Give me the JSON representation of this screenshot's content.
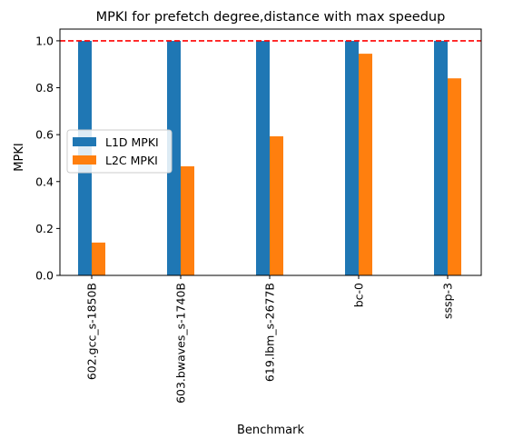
{
  "chart_data": {
    "type": "bar",
    "title": "MPKI for prefetch degree,distance with max speedup",
    "xlabel": "Benchmark",
    "ylabel": "MPKI",
    "ylim": [
      0,
      1.05
    ],
    "yticks": [
      0.0,
      0.2,
      0.4,
      0.6,
      0.8,
      1.0
    ],
    "ytick_labels": [
      "0.0",
      "0.2",
      "0.4",
      "0.6",
      "0.8",
      "1.0"
    ],
    "categories": [
      "602.gcc_s-1850B",
      "603.bwaves_s-1740B",
      "619.lbm_s-2677B",
      "bc-0",
      "sssp-3"
    ],
    "series": [
      {
        "name": "L1D MPKI",
        "color": "#1f77b4",
        "values": [
          1.0,
          1.0,
          1.0,
          1.0,
          1.0
        ]
      },
      {
        "name": "L2C MPKI",
        "color": "#ff7f0e",
        "values": [
          0.14,
          0.465,
          0.593,
          0.945,
          0.84
        ]
      }
    ],
    "reference_line": {
      "y": 1.0,
      "color": "#ff0000",
      "style": "dashed"
    },
    "grid": false,
    "legend_position": "center-left"
  }
}
